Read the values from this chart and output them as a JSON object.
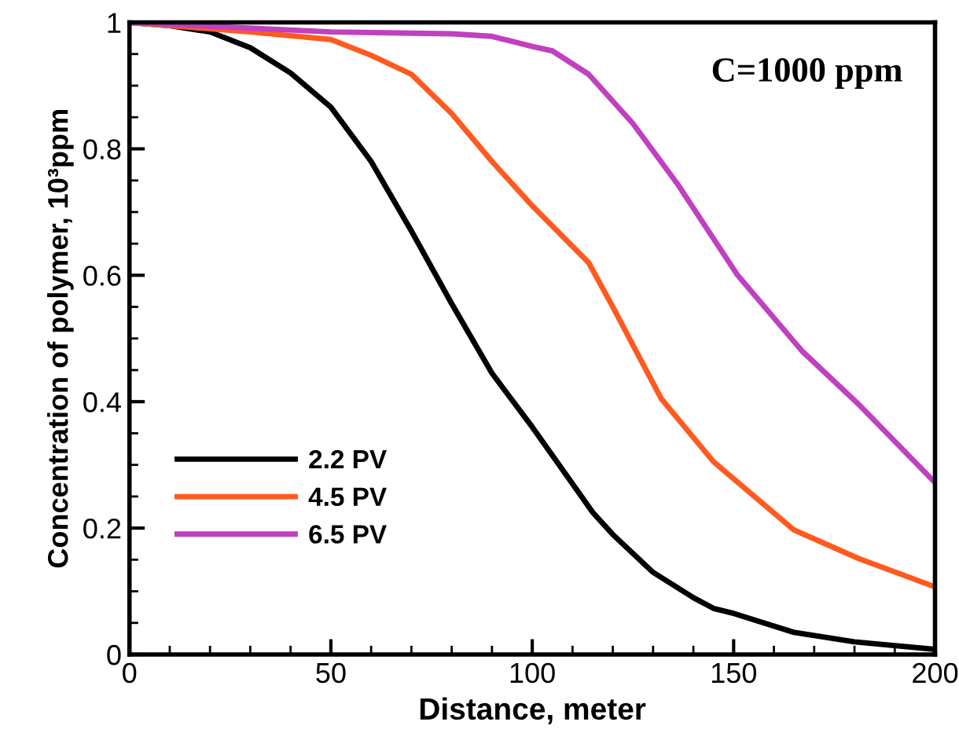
{
  "chart_data": {
    "type": "line",
    "xlabel": "Distance, meter",
    "ylabel": "Concentration of polymer, 10³ppm",
    "annotations": [
      "C=1000 ppm"
    ],
    "xlim": [
      0,
      200
    ],
    "xticks": [
      0,
      50,
      100,
      150,
      200
    ],
    "ylim": [
      0,
      1
    ],
    "yticks": [
      0,
      0.2,
      0.4,
      0.6,
      0.8,
      1
    ],
    "grid": false,
    "legend": "bottom left",
    "marker": "none",
    "line_style": "solid",
    "series": [
      {
        "name": "2.2 PV",
        "color": "#000000",
        "x": [
          0,
          10,
          20,
          30,
          40,
          50,
          60,
          70,
          80,
          90,
          100,
          110,
          115,
          120,
          130,
          140,
          145,
          150,
          165,
          180,
          200
        ],
        "values": [
          1.0,
          0.995,
          0.985,
          0.96,
          0.92,
          0.866,
          0.78,
          0.67,
          0.555,
          0.445,
          0.36,
          0.27,
          0.225,
          0.19,
          0.13,
          0.09,
          0.073,
          0.065,
          0.035,
          0.02,
          0.008
        ]
      },
      {
        "name": "4.5 PV",
        "color": "#ff5a1f",
        "x": [
          0,
          30,
          50,
          60,
          70,
          80,
          90,
          100,
          114,
          120,
          132,
          145,
          165,
          181,
          200
        ],
        "values": [
          1.0,
          0.985,
          0.973,
          0.948,
          0.918,
          0.856,
          0.78,
          0.71,
          0.62,
          0.55,
          0.405,
          0.305,
          0.197,
          0.152,
          0.107
        ]
      },
      {
        "name": "6.5 PV",
        "color": "#c040c0",
        "x": [
          0,
          50,
          80,
          90,
          95,
          100,
          105,
          114,
          125,
          136,
          151,
          167,
          181,
          200
        ],
        "values": [
          1.0,
          0.985,
          0.982,
          0.978,
          0.97,
          0.962,
          0.955,
          0.918,
          0.84,
          0.745,
          0.6,
          0.48,
          0.396,
          0.272
        ]
      }
    ]
  }
}
